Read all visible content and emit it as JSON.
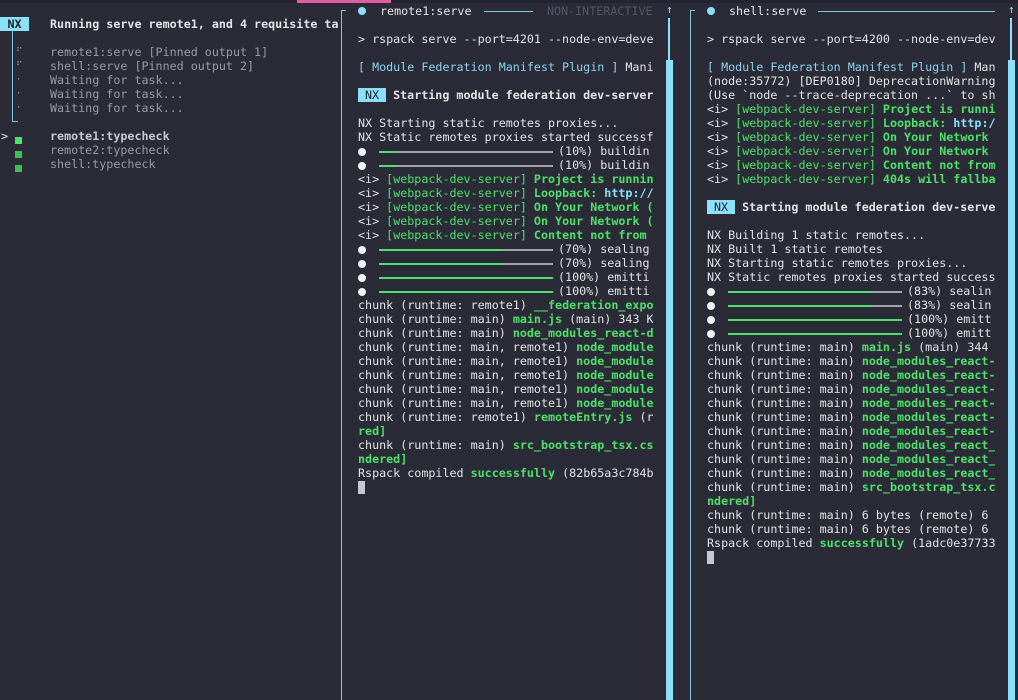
{
  "colors": {
    "accent": "#8be0fb",
    "success": "#4ee06a",
    "background": "#2a2b37",
    "highlight": "#e0609f"
  },
  "sidebar": {
    "badge": "NX",
    "title": "Running serve remote1, and 4 requisite ta",
    "pinned": [
      {
        "icon": "spinner-icon",
        "label": "remote1:serve [Pinned output 1]"
      },
      {
        "icon": "spinner-icon",
        "label": "shell:serve [Pinned output 2]"
      },
      {
        "icon": "pending-dot-icon",
        "label": "Waiting for task..."
      },
      {
        "icon": "pending-dot-icon",
        "label": "Waiting for task..."
      },
      {
        "icon": "pending-dot-icon",
        "label": "Waiting for task..."
      }
    ],
    "tasks": [
      {
        "label": "remote1:typecheck",
        "selected": true,
        "status": "success"
      },
      {
        "label": "remote2:typecheck",
        "selected": false,
        "status": "success"
      },
      {
        "label": "shell:typecheck",
        "selected": false,
        "status": "success"
      }
    ],
    "selection_marker": ">"
  },
  "panels": [
    {
      "title": "remote1:serve",
      "mode": "NON-INTERACTIVE",
      "scroll_arrow": "↑",
      "lines": [
        {
          "row": 2,
          "segs": [
            [
              "> rspack serve --port=4201 --node-env=deve",
              "w"
            ]
          ]
        },
        {
          "row": 4,
          "segs": [
            [
              "[ Module Federation Manifest Plugin ]",
              "c"
            ],
            [
              " Mani",
              "w"
            ]
          ]
        },
        {
          "row": 6,
          "badge": "NX",
          "segs": [
            [
              "Starting module federation dev-server",
              "bold"
            ]
          ]
        },
        {
          "row": 8,
          "segs": [
            [
              "NX Starting static remotes proxies...",
              "w"
            ]
          ]
        },
        {
          "row": 9,
          "segs": [
            [
              "NX Static remotes proxies started successf",
              "w"
            ]
          ]
        },
        {
          "row": 10,
          "progress": 10,
          "segs": [
            [
              "(10%) buildin",
              "w"
            ]
          ]
        },
        {
          "row": 11,
          "progress": 10,
          "segs": [
            [
              "(10%) buildin",
              "w"
            ]
          ]
        },
        {
          "row": 12,
          "segs": [
            [
              "<i> ",
              "w"
            ],
            [
              "[webpack-dev-server]",
              "g"
            ],
            [
              " Project is runnin",
              "gb"
            ]
          ]
        },
        {
          "row": 13,
          "segs": [
            [
              "<i> ",
              "w"
            ],
            [
              "[webpack-dev-server]",
              "g"
            ],
            [
              " Loopback: ",
              "gb"
            ],
            [
              "http://",
              "cb"
            ]
          ]
        },
        {
          "row": 14,
          "segs": [
            [
              "<i> ",
              "w"
            ],
            [
              "[webpack-dev-server]",
              "g"
            ],
            [
              " On Your Network (",
              "gb"
            ]
          ]
        },
        {
          "row": 15,
          "segs": [
            [
              "<i> ",
              "w"
            ],
            [
              "[webpack-dev-server]",
              "g"
            ],
            [
              " On Your Network (",
              "gb"
            ]
          ]
        },
        {
          "row": 16,
          "segs": [
            [
              "<i> ",
              "w"
            ],
            [
              "[webpack-dev-server]",
              "g"
            ],
            [
              " Content not from",
              "gb"
            ]
          ]
        },
        {
          "row": 17,
          "progress": 70,
          "segs": [
            [
              "(70%) sealing",
              "w"
            ]
          ]
        },
        {
          "row": 18,
          "progress": 70,
          "segs": [
            [
              "(70%) sealing",
              "w"
            ]
          ]
        },
        {
          "row": 19,
          "progress": 100,
          "segs": [
            [
              "(100%) emitti",
              "w"
            ]
          ]
        },
        {
          "row": 20,
          "progress": 100,
          "segs": [
            [
              "(100%) emitti",
              "w"
            ]
          ]
        },
        {
          "row": 21,
          "segs": [
            [
              "chunk (runtime: remote1) ",
              "w"
            ],
            [
              "__federation_expo",
              "gb"
            ]
          ]
        },
        {
          "row": 22,
          "segs": [
            [
              "chunk (runtime: main) ",
              "w"
            ],
            [
              "main.js",
              "gb"
            ],
            [
              " (main) 343 K",
              "w"
            ]
          ]
        },
        {
          "row": 23,
          "segs": [
            [
              "chunk (runtime: main) ",
              "w"
            ],
            [
              "node_modules_react-d",
              "gb"
            ]
          ]
        },
        {
          "row": 24,
          "segs": [
            [
              "chunk (runtime: main, remote1) ",
              "w"
            ],
            [
              "node_module",
              "gb"
            ]
          ]
        },
        {
          "row": 25,
          "segs": [
            [
              "chunk (runtime: main, remote1) ",
              "w"
            ],
            [
              "node_module",
              "gb"
            ]
          ]
        },
        {
          "row": 26,
          "segs": [
            [
              "chunk (runtime: main, remote1) ",
              "w"
            ],
            [
              "node_module",
              "gb"
            ]
          ]
        },
        {
          "row": 27,
          "segs": [
            [
              "chunk (runtime: main, remote1) ",
              "w"
            ],
            [
              "node_module",
              "gb"
            ]
          ]
        },
        {
          "row": 28,
          "segs": [
            [
              "chunk (runtime: main, remote1) ",
              "w"
            ],
            [
              "node_module",
              "gb"
            ]
          ]
        },
        {
          "row": 29,
          "segs": [
            [
              "chunk (runtime: remote1) ",
              "w"
            ],
            [
              "remoteEntry.js",
              "gb"
            ],
            [
              " (r",
              "w"
            ]
          ]
        },
        {
          "row": 30,
          "segs": [
            [
              "red]",
              "gb"
            ]
          ]
        },
        {
          "row": 31,
          "segs": [
            [
              "chunk (runtime: main) ",
              "w"
            ],
            [
              "src_bootstrap_tsx.cs",
              "gb"
            ]
          ]
        },
        {
          "row": 32,
          "segs": [
            [
              "ndered]",
              "gb"
            ]
          ]
        },
        {
          "row": 33,
          "segs": [
            [
              "Rspack compiled ",
              "w"
            ],
            [
              "successfully",
              "gb"
            ],
            [
              " (82b65a3c784b",
              "w"
            ]
          ]
        },
        {
          "row": 34,
          "cursor": true,
          "segs": []
        }
      ]
    },
    {
      "title": "shell:serve",
      "mode": "",
      "scroll_arrow": "↑",
      "lines": [
        {
          "row": 2,
          "segs": [
            [
              "> rspack serve --port=4200 --node-env=dev",
              "w"
            ]
          ]
        },
        {
          "row": 4,
          "segs": [
            [
              "[ Module Federation Manifest Plugin ]",
              "c"
            ],
            [
              " Man",
              "w"
            ]
          ]
        },
        {
          "row": 5,
          "segs": [
            [
              "(node:35772) [DEP0180] DeprecationWarning",
              "w"
            ]
          ]
        },
        {
          "row": 6,
          "segs": [
            [
              "(Use `node --trace-deprecation ...` to sh",
              "w"
            ]
          ]
        },
        {
          "row": 7,
          "segs": [
            [
              "<i> ",
              "w"
            ],
            [
              "[webpack-dev-server]",
              "g"
            ],
            [
              " Project is runni",
              "gb"
            ]
          ]
        },
        {
          "row": 8,
          "segs": [
            [
              "<i> ",
              "w"
            ],
            [
              "[webpack-dev-server]",
              "g"
            ],
            [
              " Loopback: ",
              "gb"
            ],
            [
              "http:/",
              "cb"
            ]
          ]
        },
        {
          "row": 9,
          "segs": [
            [
              "<i> ",
              "w"
            ],
            [
              "[webpack-dev-server]",
              "g"
            ],
            [
              " On Your Network",
              "gb"
            ]
          ]
        },
        {
          "row": 10,
          "segs": [
            [
              "<i> ",
              "w"
            ],
            [
              "[webpack-dev-server]",
              "g"
            ],
            [
              " On Your Network",
              "gb"
            ]
          ]
        },
        {
          "row": 11,
          "segs": [
            [
              "<i> ",
              "w"
            ],
            [
              "[webpack-dev-server]",
              "g"
            ],
            [
              " Content not from",
              "gb"
            ]
          ]
        },
        {
          "row": 12,
          "segs": [
            [
              "<i> ",
              "w"
            ],
            [
              "[webpack-dev-server]",
              "g"
            ],
            [
              " 404s will fallba",
              "gb"
            ]
          ]
        },
        {
          "row": 14,
          "badge": "NX",
          "segs": [
            [
              "Starting module federation dev-serve",
              "bold"
            ]
          ]
        },
        {
          "row": 16,
          "segs": [
            [
              "NX Building 1 static remotes...",
              "w"
            ]
          ]
        },
        {
          "row": 17,
          "segs": [
            [
              "NX Built 1 static remotes",
              "w"
            ]
          ]
        },
        {
          "row": 18,
          "segs": [
            [
              "NX Starting static remotes proxies...",
              "w"
            ]
          ]
        },
        {
          "row": 19,
          "segs": [
            [
              "NX Static remotes proxies started success",
              "w"
            ]
          ]
        },
        {
          "row": 20,
          "progress": 83,
          "segs": [
            [
              "(83%) sealin",
              "w"
            ]
          ]
        },
        {
          "row": 21,
          "progress": 83,
          "segs": [
            [
              "(83%) sealin",
              "w"
            ]
          ]
        },
        {
          "row": 22,
          "progress": 100,
          "segs": [
            [
              "(100%) emitt",
              "w"
            ]
          ]
        },
        {
          "row": 23,
          "progress": 100,
          "segs": [
            [
              "(100%) emitt",
              "w"
            ]
          ]
        },
        {
          "row": 24,
          "segs": [
            [
              "chunk (runtime: main) ",
              "w"
            ],
            [
              "main.js",
              "gb"
            ],
            [
              " (main) 344",
              "w"
            ]
          ]
        },
        {
          "row": 25,
          "segs": [
            [
              "chunk (runtime: main) ",
              "w"
            ],
            [
              "node_modules_react-",
              "gb"
            ]
          ]
        },
        {
          "row": 26,
          "segs": [
            [
              "chunk (runtime: main) ",
              "w"
            ],
            [
              "node_modules_react-",
              "gb"
            ]
          ]
        },
        {
          "row": 27,
          "segs": [
            [
              "chunk (runtime: main) ",
              "w"
            ],
            [
              "node_modules_react-",
              "gb"
            ]
          ]
        },
        {
          "row": 28,
          "segs": [
            [
              "chunk (runtime: main) ",
              "w"
            ],
            [
              "node_modules_react-",
              "gb"
            ]
          ]
        },
        {
          "row": 29,
          "segs": [
            [
              "chunk (runtime: main) ",
              "w"
            ],
            [
              "node_modules_react-",
              "gb"
            ]
          ]
        },
        {
          "row": 30,
          "segs": [
            [
              "chunk (runtime: main) ",
              "w"
            ],
            [
              "node_modules_react-",
              "gb"
            ]
          ]
        },
        {
          "row": 31,
          "segs": [
            [
              "chunk (runtime: main) ",
              "w"
            ],
            [
              "node_modules_react_",
              "gb"
            ]
          ]
        },
        {
          "row": 32,
          "segs": [
            [
              "chunk (runtime: main) ",
              "w"
            ],
            [
              "node_modules_react_",
              "gb"
            ]
          ]
        },
        {
          "row": 33,
          "segs": [
            [
              "chunk (runtime: main) ",
              "w"
            ],
            [
              "node_modules_react_",
              "gb"
            ]
          ]
        },
        {
          "row": 34,
          "segs": [
            [
              "chunk (runtime: main) ",
              "w"
            ],
            [
              "src_bootstrap_tsx.c",
              "gb"
            ]
          ]
        },
        {
          "row": 35,
          "segs": [
            [
              "ndered]",
              "gb"
            ]
          ]
        },
        {
          "row": 36,
          "segs": [
            [
              "chunk (runtime: main) 6 bytes (remote) 6",
              "w"
            ]
          ]
        },
        {
          "row": 37,
          "segs": [
            [
              "chunk (runtime: main) 6 bytes (remote) 6",
              "w"
            ]
          ]
        },
        {
          "row": 38,
          "segs": [
            [
              "Rspack compiled ",
              "w"
            ],
            [
              "successfully",
              "gb"
            ],
            [
              " (1adc0e37733",
              "w"
            ]
          ]
        },
        {
          "row": 39,
          "cursor": true,
          "segs": []
        }
      ]
    }
  ]
}
